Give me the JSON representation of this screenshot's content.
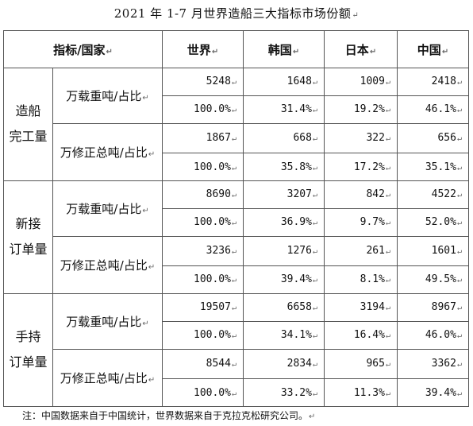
{
  "title": "2021 年 1-7 月世界造船三大指标市场份额",
  "mark": "↵",
  "headers": [
    "指标/国家",
    "世界",
    "韩国",
    "日本",
    "中国"
  ],
  "groups": [
    {
      "line1": "造船",
      "line2": "完工量",
      "metrics": [
        {
          "label": "万载重吨/占比",
          "abs": [
            "5248",
            "1648",
            "1009",
            "2418"
          ],
          "pct": [
            "100.0%",
            "31.4%",
            "19.2%",
            "46.1%"
          ]
        },
        {
          "label": "万修正总吨/占比",
          "abs": [
            "1867",
            "668",
            "322",
            "656"
          ],
          "pct": [
            "100.0%",
            "35.8%",
            "17.2%",
            "35.1%"
          ]
        }
      ]
    },
    {
      "line1": "新接",
      "line2": "订单量",
      "metrics": [
        {
          "label": "万载重吨/占比",
          "abs": [
            "8690",
            "3207",
            "842",
            "4522"
          ],
          "pct": [
            "100.0%",
            "36.9%",
            "9.7%",
            "52.0%"
          ]
        },
        {
          "label": "万修正总吨/占比",
          "abs": [
            "3236",
            "1276",
            "261",
            "1601"
          ],
          "pct": [
            "100.0%",
            "39.4%",
            "8.1%",
            "49.5%"
          ]
        }
      ]
    },
    {
      "line1": "手持",
      "line2": "订单量",
      "metrics": [
        {
          "label": "万载重吨/占比",
          "abs": [
            "19507",
            "6658",
            "3194",
            "8967"
          ],
          "pct": [
            "100.0%",
            "34.1%",
            "16.4%",
            "46.0%"
          ]
        },
        {
          "label": "万修正总吨/占比",
          "abs": [
            "8544",
            "2834",
            "965",
            "3362"
          ],
          "pct": [
            "100.0%",
            "33.2%",
            "11.3%",
            "39.4%"
          ]
        }
      ]
    }
  ],
  "note": "注：中国数据来自于中国统计，世界数据来自于克拉克松研究公司。"
}
